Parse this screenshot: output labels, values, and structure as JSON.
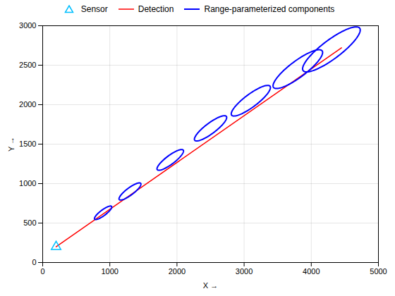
{
  "chart_data": {
    "type": "line",
    "title": "",
    "xlabel": "X",
    "ylabel": "Y",
    "xlim": [
      0,
      5000
    ],
    "ylim": [
      0,
      3000
    ],
    "xticks": [
      0,
      1000,
      2000,
      3000,
      4000,
      5000
    ],
    "yticks": [
      0,
      500,
      1000,
      1500,
      2000,
      2500,
      3000
    ],
    "grid": true,
    "legend": "top",
    "series": [
      {
        "name": "Sensor",
        "type": "scatter",
        "marker": "triangle",
        "color": "#00BFFF",
        "x": [
          200
        ],
        "values": [
          200
        ]
      },
      {
        "name": "Detection",
        "type": "line",
        "color": "red",
        "x": [
          200,
          4450
        ],
        "values": [
          200,
          2720
        ]
      },
      {
        "name": "Range-parameterized components",
        "type": "ellipse",
        "color": "blue",
        "x": [
          900,
          1300,
          1900,
          2500,
          3100,
          3800,
          4300
        ],
        "values": [
          630,
          900,
          1300,
          1700,
          2050,
          2450,
          2700
        ],
        "semi_major": [
          150,
          190,
          230,
          280,
          340,
          430,
          500
        ],
        "semi_minor": [
          38,
          48,
          58,
          70,
          85,
          108,
          125
        ],
        "angle": 32
      }
    ]
  }
}
